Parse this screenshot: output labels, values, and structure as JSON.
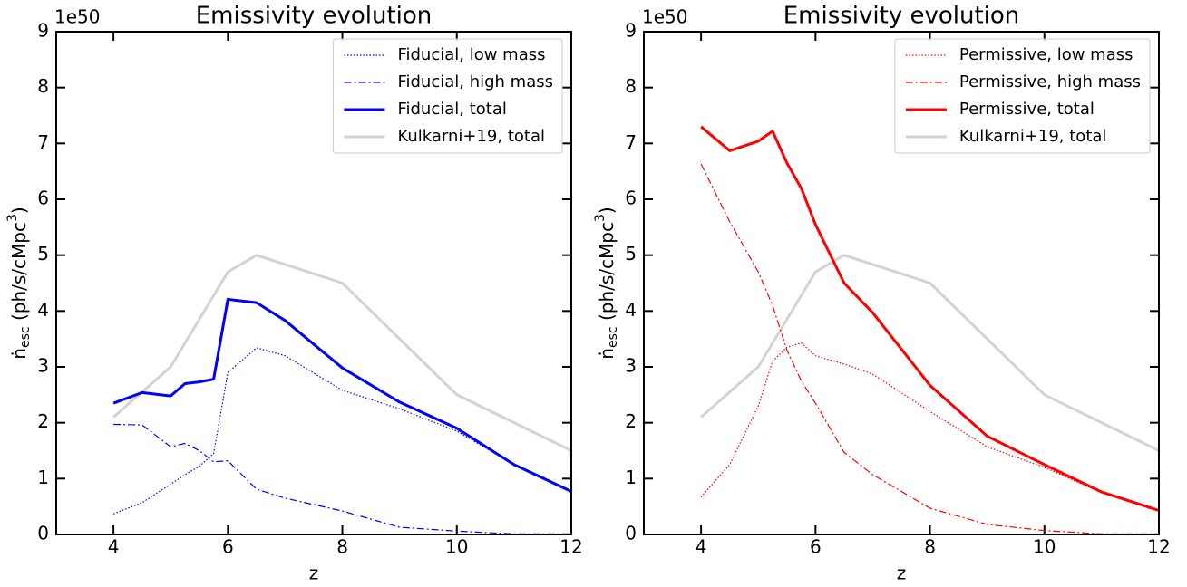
{
  "chart_data": [
    {
      "type": "line",
      "title": "Emissivity evolution",
      "xlabel": "z",
      "ylabel": {
        "base": "ṅ",
        "sub": "esc",
        "main": " (ph/s/cMpc",
        "sup": "3",
        "end": ")"
      },
      "y_offset_label": "1e50",
      "xlim": [
        3,
        12
      ],
      "xticks": [
        4,
        6,
        8,
        10,
        12
      ],
      "ylim": [
        0,
        9
      ],
      "yticks": [
        0,
        1,
        2,
        3,
        4,
        5,
        6,
        7,
        8,
        9
      ],
      "legend": "upper right",
      "series": [
        {
          "name": "Fiducial, low mass",
          "color": "#0000ff",
          "linestyle": "dotted",
          "x": [
            4,
            4.5,
            5,
            5.25,
            5.5,
            5.75,
            6,
            6.5,
            7,
            8,
            9,
            10,
            11,
            12
          ],
          "values": [
            0.37,
            0.57,
            0.9,
            1.07,
            1.22,
            1.45,
            2.9,
            3.34,
            3.2,
            2.58,
            2.25,
            1.85,
            1.25,
            0.77
          ]
        },
        {
          "name": "Fiducial, high mass",
          "color": "#0000ff",
          "linestyle": "dashdot",
          "x": [
            4,
            4.5,
            5,
            5.25,
            5.5,
            5.75,
            6,
            6.5,
            7,
            8,
            9,
            10,
            11,
            12
          ],
          "values": [
            1.97,
            1.96,
            1.57,
            1.63,
            1.5,
            1.3,
            1.32,
            0.81,
            0.65,
            0.42,
            0.13,
            0.06,
            0.01,
            0.01
          ]
        },
        {
          "name": "Fiducial, total",
          "color": "#0000ff",
          "linestyle": "solid",
          "x": [
            4,
            4.5,
            5,
            5.25,
            5.5,
            5.75,
            6,
            6.5,
            7,
            8,
            9,
            10,
            11,
            12
          ],
          "values": [
            2.35,
            2.54,
            2.48,
            2.7,
            2.73,
            2.78,
            4.21,
            4.15,
            3.83,
            2.98,
            2.37,
            1.9,
            1.25,
            0.77
          ]
        },
        {
          "name": "Kulkarni+19, total",
          "color": "#d3d3d3",
          "linestyle": "solid",
          "x": [
            4,
            5,
            6,
            6.5,
            8,
            10,
            12
          ],
          "values": [
            2.1,
            3.0,
            4.7,
            5.0,
            4.5,
            2.5,
            1.5
          ]
        }
      ]
    },
    {
      "type": "line",
      "title": "Emissivity evolution",
      "xlabel": "z",
      "ylabel": {
        "base": "ṅ",
        "sub": "esc",
        "main": " (ph/s/cMpc",
        "sup": "3",
        "end": ")"
      },
      "y_offset_label": "1e50",
      "xlim": [
        3,
        12
      ],
      "xticks": [
        4,
        6,
        8,
        10,
        12
      ],
      "ylim": [
        0,
        9
      ],
      "yticks": [
        0,
        1,
        2,
        3,
        4,
        5,
        6,
        7,
        8,
        9
      ],
      "legend": "upper right",
      "series": [
        {
          "name": "Permissive, low mass",
          "color": "#ff0000",
          "linestyle": "dotted",
          "x": [
            4,
            4.5,
            5,
            5.25,
            5.5,
            5.75,
            6,
            6.5,
            7,
            8,
            9,
            10,
            11,
            12
          ],
          "values": [
            0.67,
            1.25,
            2.3,
            3.1,
            3.35,
            3.43,
            3.2,
            3.05,
            2.87,
            2.2,
            1.57,
            1.2,
            0.75,
            0.43
          ]
        },
        {
          "name": "Permissive, high mass",
          "color": "#ff0000",
          "linestyle": "dashdot",
          "x": [
            4,
            4.5,
            5,
            5.25,
            5.5,
            5.75,
            6,
            6.5,
            7,
            8,
            9,
            10,
            11,
            12
          ],
          "values": [
            6.63,
            5.6,
            4.7,
            4.1,
            3.3,
            2.75,
            2.35,
            1.47,
            1.07,
            0.47,
            0.18,
            0.07,
            0.01,
            0.01
          ]
        },
        {
          "name": "Permissive, total",
          "color": "#ff0000",
          "linestyle": "solid",
          "x": [
            4,
            4.5,
            5,
            5.25,
            5.5,
            5.75,
            6,
            6.5,
            7,
            8,
            9,
            10,
            11,
            12
          ],
          "values": [
            7.3,
            6.87,
            7.04,
            7.22,
            6.65,
            6.2,
            5.55,
            4.5,
            3.97,
            2.67,
            1.76,
            1.25,
            0.76,
            0.43
          ]
        },
        {
          "name": "Kulkarni+19, total",
          "color": "#d3d3d3",
          "linestyle": "solid",
          "x": [
            4,
            5,
            6,
            6.5,
            8,
            10,
            12
          ],
          "values": [
            2.1,
            3.0,
            4.7,
            5.0,
            4.5,
            2.5,
            1.5
          ]
        }
      ]
    }
  ]
}
